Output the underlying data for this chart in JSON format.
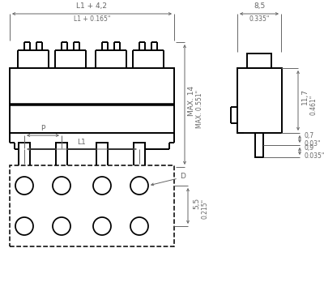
{
  "bg_color": "#ffffff",
  "line_color": "#000000",
  "dim_color": "#666666",
  "annotations": {
    "L1_4_2": "L1 + 4,2",
    "L1_0165": "L1 + 0.165\"",
    "MAX14": "MAX. 14",
    "MAX0551": "MAX. 0.551\"",
    "L1": "L1",
    "P": "P",
    "D": "D",
    "dim55": "5,5",
    "dim0215": "0.215\"",
    "dim85": "8,5",
    "dim0335": "0.335\"",
    "dim117": "11,7",
    "dim0461": "0.461\"",
    "dim07": "0,7",
    "dim003": "0.03\"",
    "dim09": "0,9",
    "dim0035": "0.035\""
  }
}
